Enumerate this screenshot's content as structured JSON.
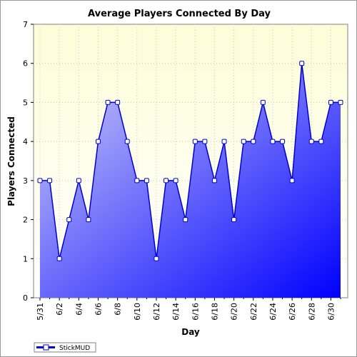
{
  "chart_data": {
    "type": "area",
    "title": "Average Players Connected By Day",
    "xlabel": "Day",
    "ylabel": "Players Connected",
    "ylim": [
      0,
      7
    ],
    "yticks": [
      "0",
      "1",
      "2",
      "3",
      "4",
      "5",
      "6",
      "7"
    ],
    "x_tick_labels": [
      "5/31",
      "6/2",
      "6/4",
      "6/6",
      "6/8",
      "6/10",
      "6/12",
      "6/14",
      "6/16",
      "6/18",
      "6/20",
      "6/22",
      "6/24",
      "6/26",
      "6/28",
      "6/30"
    ],
    "x": [
      "5/31",
      "6/1",
      "6/2",
      "6/3",
      "6/4",
      "6/5",
      "6/6",
      "6/7",
      "6/8",
      "6/9",
      "6/10",
      "6/11",
      "6/12",
      "6/13",
      "6/14",
      "6/15",
      "6/16",
      "6/17",
      "6/18",
      "6/19",
      "6/20",
      "6/21",
      "6/22",
      "6/23",
      "6/24",
      "6/25",
      "6/26",
      "6/27",
      "6/28",
      "6/29",
      "6/30",
      "7/1"
    ],
    "series": [
      {
        "name": "StickMUD",
        "values": [
          3,
          3,
          1,
          2,
          3,
          2,
          4,
          5,
          5,
          4,
          3,
          3,
          1,
          3,
          3,
          2,
          4,
          4,
          3,
          4,
          2,
          4,
          4,
          5,
          4,
          4,
          3,
          6,
          4,
          4,
          5,
          5
        ]
      }
    ],
    "grid": true,
    "legend": "bottom-left",
    "colors": {
      "plot_background_top": "#fdfdd8",
      "plot_background_bottom": "#ffffff",
      "area_gradient_light": "#d0d0f8",
      "area_gradient_dark": "#0000ff",
      "line": "#0000d0",
      "marker_fill": "#ffffff",
      "grid": "#c8c8c8"
    }
  }
}
